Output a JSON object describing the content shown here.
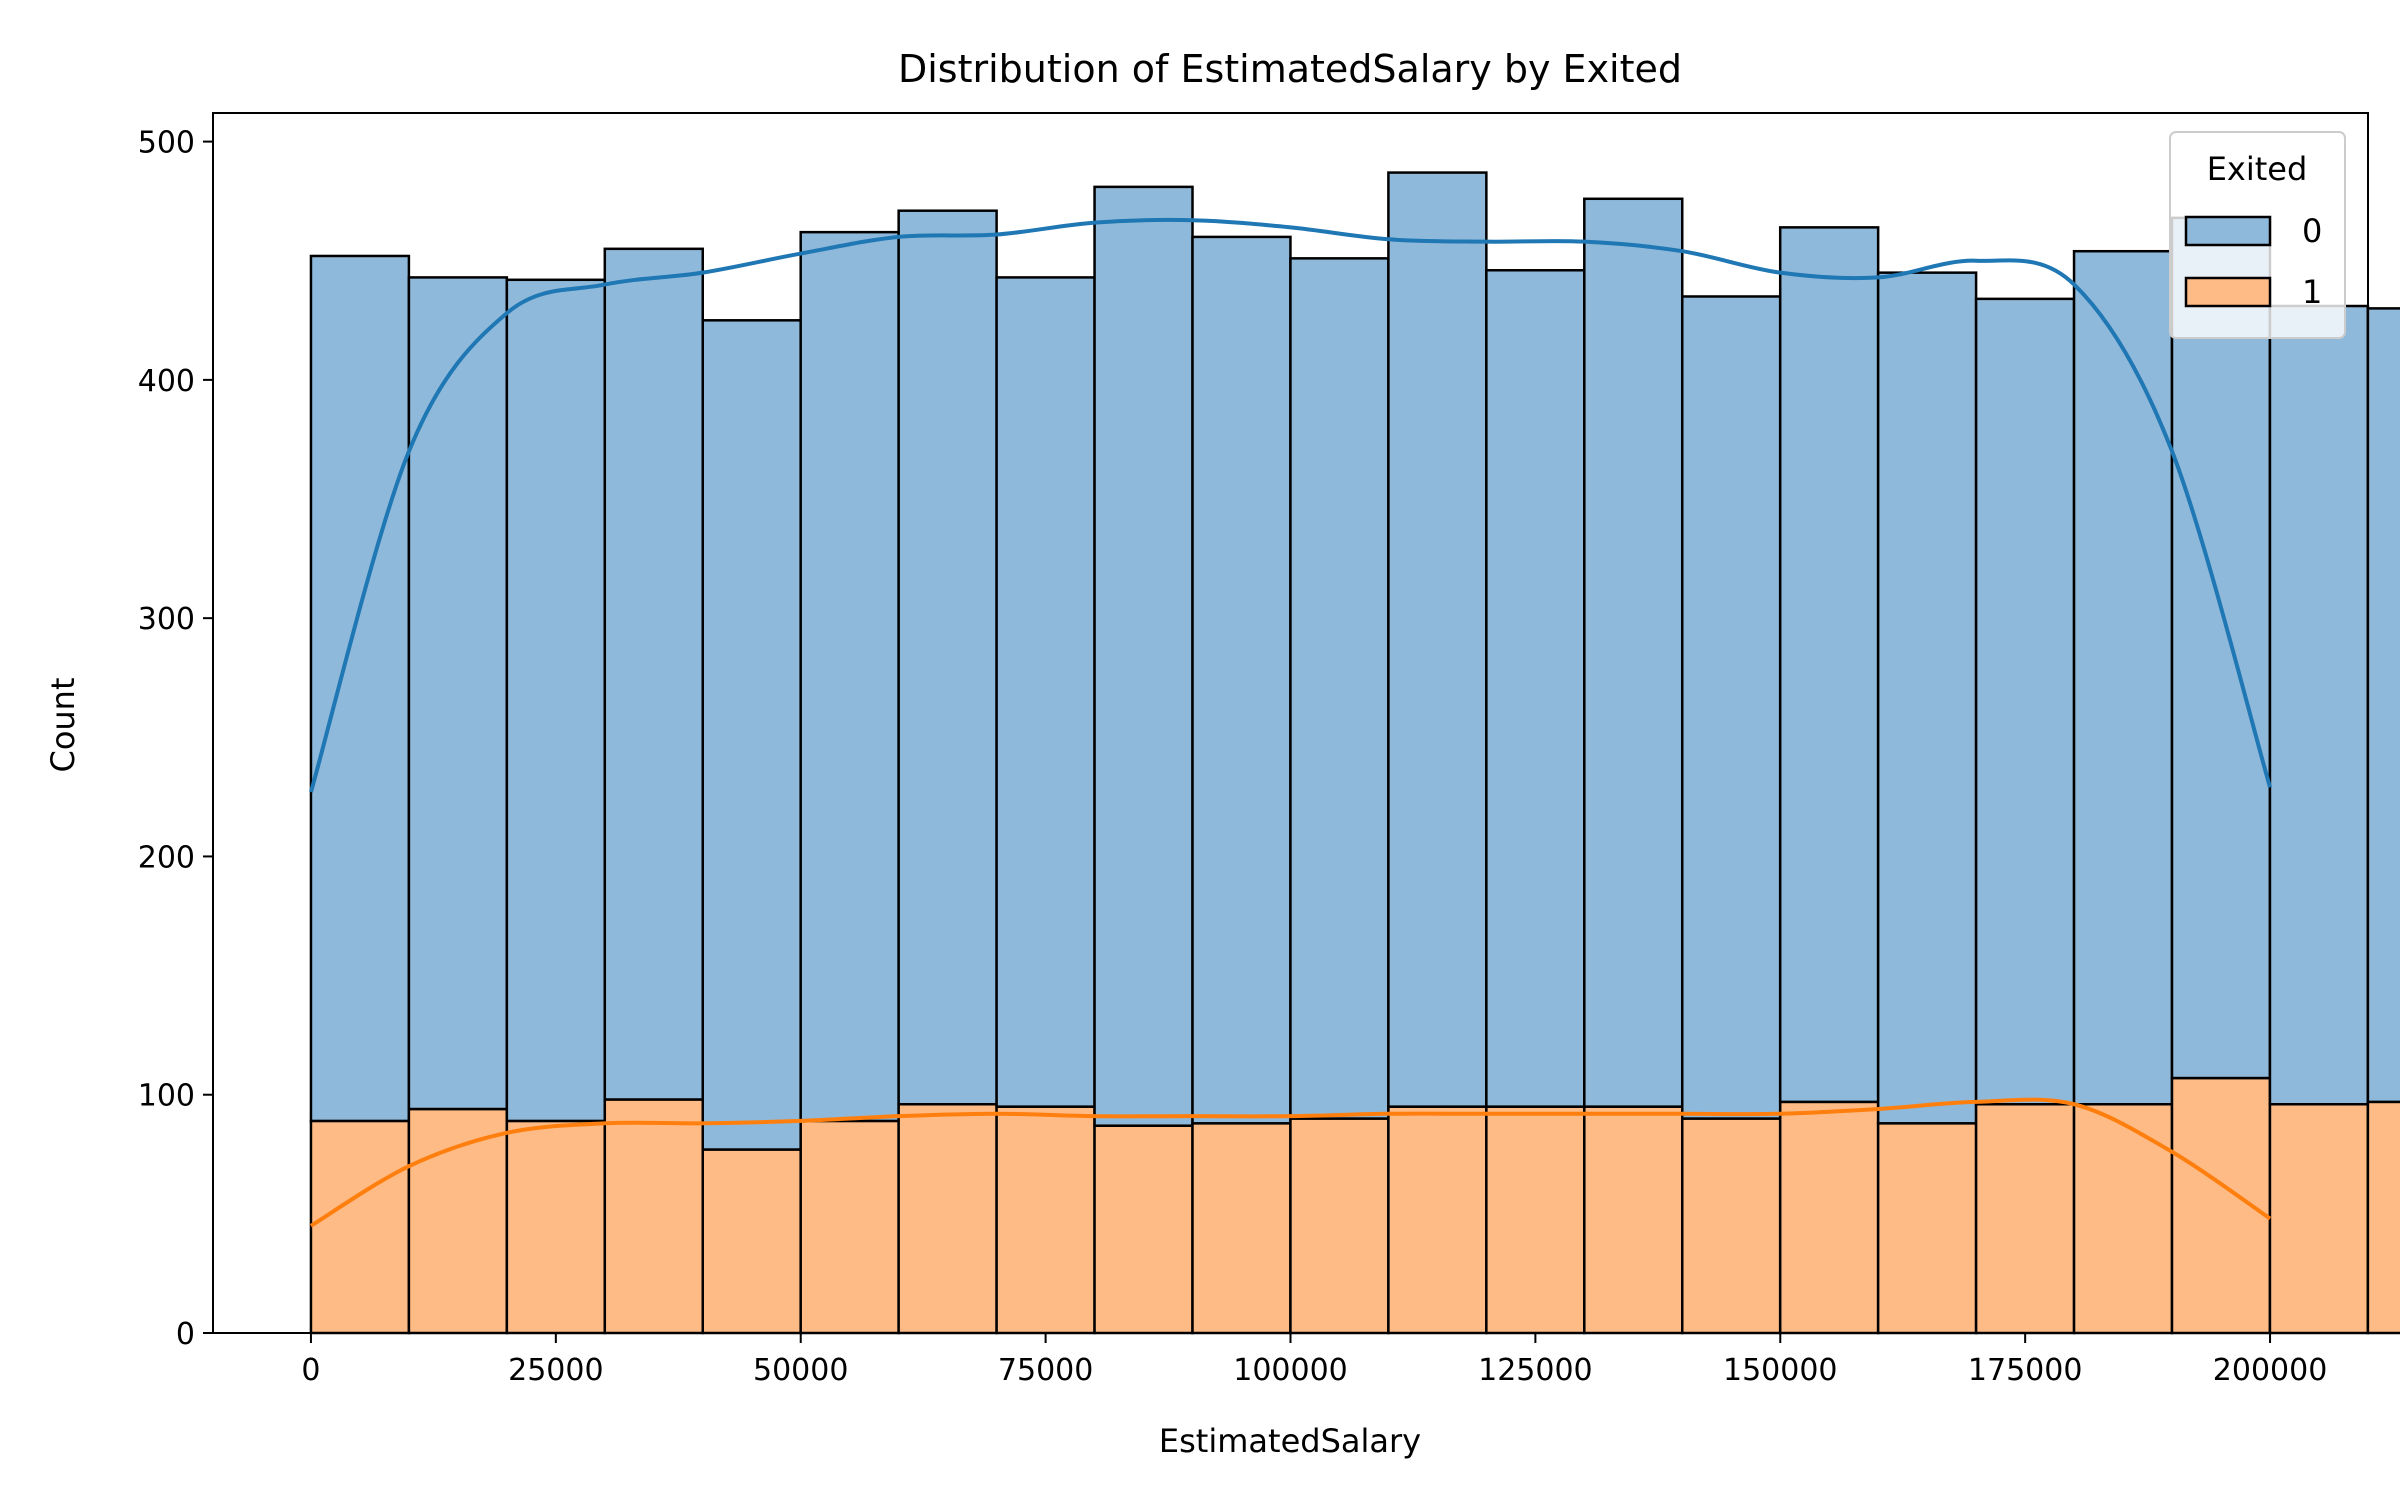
{
  "chart_data": {
    "type": "bar",
    "title": "Distribution of EstimatedSalary by Exited",
    "xlabel": "EstimatedSalary",
    "ylabel": "Count",
    "xlim": [
      -10000,
      210000
    ],
    "ylim": [
      0,
      512
    ],
    "xticks": [
      0,
      25000,
      50000,
      75000,
      100000,
      125000,
      150000,
      175000,
      200000
    ],
    "yticks": [
      0,
      100,
      200,
      300,
      400,
      500
    ],
    "bin_start": 0,
    "bin_width": 9999.5,
    "stacked": true,
    "grid": false,
    "legend": {
      "title": "Exited",
      "position": "top-right"
    },
    "series": [
      {
        "name": "0",
        "color": "#1f77b4",
        "fill": "#8fb9da",
        "values": [
          363,
          349,
          353,
          357,
          348,
          373,
          375,
          348,
          394,
          372,
          361,
          392,
          351,
          381,
          345,
          367,
          357,
          338,
          358,
          361,
          335,
          333
        ]
      },
      {
        "name": "1",
        "color": "#ff7f0e",
        "fill": "#ffbb86",
        "values": [
          89,
          94,
          89,
          98,
          77,
          89,
          96,
          95,
          87,
          88,
          90,
          95,
          95,
          95,
          90,
          97,
          88,
          96,
          96,
          107,
          96,
          97
        ]
      }
    ],
    "kde": [
      {
        "series": "0",
        "x": [
          0,
          10000,
          20000,
          30000,
          40000,
          50000,
          60000,
          70000,
          80000,
          90000,
          100000,
          110000,
          120000,
          130000,
          140000,
          150000,
          160000,
          170000,
          180000,
          190000,
          200000
        ],
        "y": [
          227,
          370,
          428,
          440,
          445,
          453,
          460,
          461,
          466,
          467,
          464,
          459,
          458,
          458,
          454,
          445,
          443,
          450,
          440,
          370,
          229
        ]
      },
      {
        "series": "1",
        "x": [
          0,
          10000,
          20000,
          30000,
          40000,
          50000,
          60000,
          70000,
          80000,
          90000,
          100000,
          110000,
          120000,
          130000,
          140000,
          150000,
          160000,
          170000,
          180000,
          190000,
          200000
        ],
        "y": [
          45,
          70,
          84,
          88,
          88,
          89,
          91,
          92,
          91,
          91,
          91,
          92,
          92,
          92,
          92,
          92,
          94,
          97,
          96,
          76,
          48
        ]
      }
    ]
  }
}
